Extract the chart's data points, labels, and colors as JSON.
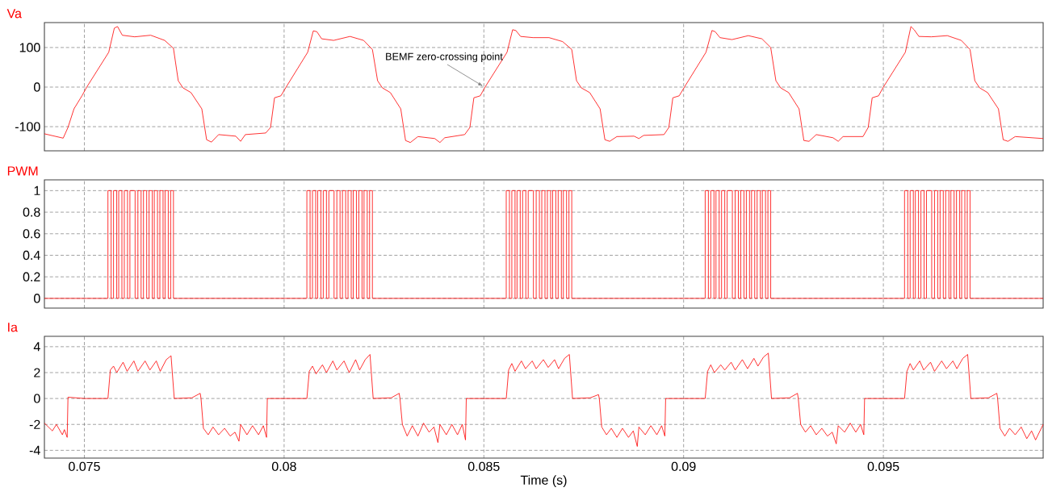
{
  "chart_data": [
    {
      "type": "line",
      "xlim": [
        0.074,
        0.099
      ],
      "xticks": [
        0.075,
        0.08,
        0.085,
        0.09,
        0.095
      ],
      "ylim": [
        -161,
        163
      ],
      "yticks": [
        -100,
        0,
        100
      ],
      "grid": true,
      "tick_labels": "y",
      "annotations": [
        {
          "text": "BEMF zero-crossing point",
          "x": 0.085,
          "y": 0
        }
      ],
      "series": [
        {
          "name": "Va",
          "color": "#ff0000",
          "x": [
            0.074,
            0.07447,
            0.07459,
            0.07474,
            0.07494,
            0.07506,
            0.07561,
            0.07575,
            0.07583,
            0.07595,
            0.07626,
            0.07666,
            0.07701,
            0.07723,
            0.07735,
            0.07747,
            0.07767,
            0.07794,
            0.07806,
            0.07818,
            0.07836,
            0.07879,
            0.07891,
            0.07903,
            0.07954,
            0.07966,
            0.07976,
            0.07992,
            0.08005,
            0.08059,
            0.08073,
            0.08082,
            0.08094,
            0.08124,
            0.08165,
            0.08199,
            0.08221,
            0.08234,
            0.08246,
            0.08266,
            0.08292,
            0.08304,
            0.08316,
            0.08335,
            0.08377,
            0.0839,
            0.08402,
            0.08452,
            0.08465,
            0.08475,
            0.08491,
            0.08503,
            0.08558,
            0.08572,
            0.0858,
            0.08592,
            0.08623,
            0.08663,
            0.08697,
            0.0872,
            0.08732,
            0.08744,
            0.08765,
            0.08791,
            0.08803,
            0.08815,
            0.08833,
            0.08876,
            0.08888,
            0.089,
            0.08951,
            0.08963,
            0.08973,
            0.08989,
            0.09002,
            0.09056,
            0.09071,
            0.09079,
            0.09091,
            0.09121,
            0.09162,
            0.09196,
            0.09218,
            0.09231,
            0.09243,
            0.09263,
            0.09289,
            0.09301,
            0.09314,
            0.09332,
            0.09374,
            0.09387,
            0.09399,
            0.09449,
            0.09462,
            0.09472,
            0.09488,
            0.095,
            0.09555,
            0.09569,
            0.09577,
            0.09589,
            0.0962,
            0.0966,
            0.09695,
            0.09717,
            0.09729,
            0.09741,
            0.09761,
            0.09788,
            0.098,
            0.09812,
            0.0983,
            0.099
          ],
          "values": [
            -118,
            -129,
            -102,
            -55,
            -22,
            0,
            88,
            149,
            153,
            131,
            127,
            131,
            118,
            98,
            16,
            -2,
            -14,
            -55,
            -133,
            -139,
            -120,
            -124,
            -137,
            -120,
            -116,
            -102,
            -27,
            -22,
            0,
            88,
            142,
            140,
            122,
            118,
            128,
            118,
            95,
            16,
            -2,
            -14,
            -55,
            -135,
            -140,
            -125,
            -130,
            -140,
            -128,
            -120,
            -102,
            -27,
            -22,
            0,
            88,
            145,
            143,
            128,
            125,
            125,
            115,
            95,
            16,
            -2,
            -14,
            -55,
            -133,
            -137,
            -125,
            -124,
            -130,
            -122,
            -120,
            -102,
            -27,
            -22,
            0,
            88,
            143,
            140,
            125,
            120,
            130,
            122,
            100,
            16,
            -2,
            -14,
            -55,
            -135,
            -137,
            -120,
            -128,
            -137,
            -125,
            -125,
            -102,
            -27,
            -22,
            0,
            88,
            153,
            145,
            128,
            127,
            130,
            118,
            95,
            16,
            -2,
            -14,
            -55,
            -133,
            -137,
            -125,
            -130
          ]
        }
      ]
    },
    {
      "type": "step",
      "xlim": [
        0.074,
        0.099
      ],
      "xticks": [
        0.075,
        0.08,
        0.085,
        0.09,
        0.095
      ],
      "ylim": [
        -0.09,
        1.1
      ],
      "yticks": [
        0,
        0.2,
        0.4,
        0.6,
        0.8,
        1
      ],
      "grid": true,
      "tick_labels": "y",
      "series": [
        {
          "name": "PWM",
          "color": "#ff0000",
          "x": [
            0.074,
            0.07559,
            0.07567,
            0.07573,
            0.07581,
            0.07586,
            0.07594,
            0.076,
            0.07608,
            0.07614,
            0.07627,
            0.07634,
            0.07642,
            0.07648,
            0.07656,
            0.07662,
            0.0767,
            0.07675,
            0.07683,
            0.07689,
            0.07697,
            0.07702,
            0.0771,
            0.07716,
            0.07723,
            0.08057,
            0.08065,
            0.08071,
            0.08079,
            0.08084,
            0.08092,
            0.08098,
            0.08106,
            0.08112,
            0.08125,
            0.08132,
            0.0814,
            0.08146,
            0.08154,
            0.0816,
            0.08168,
            0.08173,
            0.08181,
            0.08187,
            0.08195,
            0.082,
            0.08208,
            0.08214,
            0.08221,
            0.08556,
            0.08564,
            0.0857,
            0.08578,
            0.08583,
            0.08591,
            0.08597,
            0.08605,
            0.08611,
            0.08624,
            0.08631,
            0.08639,
            0.08645,
            0.08653,
            0.08659,
            0.08667,
            0.08672,
            0.0868,
            0.08686,
            0.08694,
            0.08699,
            0.08707,
            0.08713,
            0.0872,
            0.09054,
            0.09062,
            0.09068,
            0.09076,
            0.09081,
            0.09089,
            0.09095,
            0.09103,
            0.09109,
            0.09122,
            0.09129,
            0.09137,
            0.09143,
            0.09151,
            0.09157,
            0.09165,
            0.0917,
            0.09178,
            0.09184,
            0.09192,
            0.09197,
            0.09205,
            0.09211,
            0.09218,
            0.09553,
            0.09561,
            0.09567,
            0.09575,
            0.0958,
            0.09588,
            0.09594,
            0.09602,
            0.09608,
            0.09621,
            0.09628,
            0.09636,
            0.09642,
            0.0965,
            0.09656,
            0.09664,
            0.09669,
            0.09677,
            0.09683,
            0.09691,
            0.09696,
            0.09704,
            0.0971,
            0.09717,
            0.099
          ],
          "values": [
            0,
            1,
            0,
            1,
            0,
            1,
            0,
            1,
            0,
            1,
            0,
            1,
            0,
            1,
            0,
            1,
            0,
            1,
            0,
            1,
            0,
            1,
            0,
            1,
            0,
            1,
            0,
            1,
            0,
            1,
            0,
            1,
            0,
            1,
            0,
            1,
            0,
            1,
            0,
            1,
            0,
            1,
            0,
            1,
            0,
            1,
            0,
            1,
            0,
            1,
            0,
            1,
            0,
            1,
            0,
            1,
            0,
            1,
            0,
            1,
            0,
            1,
            0,
            1,
            0,
            1,
            0,
            1,
            0,
            1,
            0,
            1,
            0,
            1,
            0,
            1,
            0,
            1,
            0,
            1,
            0,
            1,
            0,
            1,
            0,
            1,
            0,
            1,
            0,
            1,
            0,
            1,
            0,
            1,
            0,
            1,
            0,
            1,
            0,
            1,
            0,
            1,
            0,
            1,
            0,
            1,
            0,
            1,
            0,
            1,
            0,
            1,
            0,
            1,
            0,
            1,
            0,
            1,
            0,
            1,
            0,
            0
          ]
        }
      ]
    },
    {
      "type": "line",
      "xlim": [
        0.074,
        0.099
      ],
      "xticks": [
        0.075,
        0.08,
        0.085,
        0.09,
        0.095
      ],
      "ylim": [
        -4.6,
        4.8
      ],
      "yticks": [
        -4,
        -2,
        0,
        2,
        4
      ],
      "grid": true,
      "xlabel": "Time (s)",
      "series": [
        {
          "name": "Ia",
          "color": "#ff0000",
          "x": [
            0.074,
            0.0742,
            0.0743,
            0.07445,
            0.0745,
            0.07457,
            0.07459,
            0.075,
            0.07559,
            0.07565,
            0.07573,
            0.07581,
            0.07597,
            0.07607,
            0.07624,
            0.07634,
            0.07652,
            0.07664,
            0.0768,
            0.0769,
            0.07705,
            0.07717,
            0.07725,
            0.07769,
            0.0779,
            0.07792,
            0.07798,
            0.0781,
            0.07822,
            0.07836,
            0.07851,
            0.07865,
            0.07877,
            0.07887,
            0.07891,
            0.07907,
            0.07921,
            0.07936,
            0.07948,
            0.07956,
            0.07958,
            0.08057,
            0.08063,
            0.08071,
            0.0808,
            0.08096,
            0.08106,
            0.08122,
            0.08132,
            0.0815,
            0.08163,
            0.08179,
            0.08189,
            0.08203,
            0.08215,
            0.08223,
            0.08268,
            0.08288,
            0.0829,
            0.08296,
            0.08308,
            0.08321,
            0.08335,
            0.08349,
            0.08363,
            0.08375,
            0.08385,
            0.0839,
            0.08406,
            0.0842,
            0.08434,
            0.08446,
            0.08454,
            0.08456,
            0.08556,
            0.08562,
            0.0857,
            0.08578,
            0.08594,
            0.08604,
            0.08621,
            0.08631,
            0.08649,
            0.08661,
            0.08677,
            0.08687,
            0.08702,
            0.08714,
            0.08722,
            0.08766,
            0.08787,
            0.08789,
            0.08795,
            0.08807,
            0.08819,
            0.08833,
            0.08847,
            0.08862,
            0.08874,
            0.08884,
            0.08888,
            0.08904,
            0.08918,
            0.08933,
            0.08945,
            0.08953,
            0.08955,
            0.09054,
            0.0906,
            0.09068,
            0.09077,
            0.09093,
            0.09103,
            0.09119,
            0.09129,
            0.09147,
            0.0916,
            0.09176,
            0.09186,
            0.092,
            0.09212,
            0.0922,
            0.09265,
            0.09285,
            0.09287,
            0.09293,
            0.09305,
            0.09318,
            0.09332,
            0.09346,
            0.0936,
            0.09372,
            0.09382,
            0.09387,
            0.09403,
            0.09417,
            0.09431,
            0.09443,
            0.09451,
            0.09453,
            0.09553,
            0.09559,
            0.09567,
            0.09575,
            0.09591,
            0.09601,
            0.09618,
            0.09628,
            0.09646,
            0.09658,
            0.09674,
            0.09684,
            0.09699,
            0.09711,
            0.09719,
            0.09763,
            0.09784,
            0.09786,
            0.09792,
            0.09804,
            0.09816,
            0.0983,
            0.09845,
            0.09859,
            0.09871,
            0.09881,
            0.099
          ],
          "values": [
            -1.9,
            -2.5,
            -2.0,
            -2.8,
            -2.4,
            -3.0,
            0.1,
            0,
            0,
            2.2,
            2.5,
            2.0,
            2.8,
            2.1,
            2.9,
            2.1,
            2.9,
            2.2,
            2.9,
            2.1,
            3.0,
            3.3,
            0,
            0.05,
            0.4,
            0,
            -2.3,
            -2.8,
            -2.2,
            -2.8,
            -2.3,
            -2.9,
            -2.6,
            -3.3,
            -2.0,
            -2.8,
            -2.1,
            -2.8,
            -2.1,
            -3.0,
            0,
            0,
            2.1,
            2.5,
            1.9,
            2.6,
            2.0,
            2.9,
            2.2,
            2.9,
            2.0,
            3.0,
            2.2,
            3.0,
            3.4,
            0,
            0.05,
            0.4,
            0,
            -2.0,
            -2.9,
            -2.1,
            -2.9,
            -1.9,
            -2.6,
            -2.2,
            -3.4,
            -2.0,
            -2.8,
            -2.0,
            -2.8,
            -2.0,
            -3.2,
            0,
            0,
            2.2,
            2.7,
            2.1,
            2.9,
            2.3,
            2.9,
            2.3,
            3.0,
            2.4,
            3.0,
            2.3,
            3.1,
            3.4,
            0,
            0.05,
            0.3,
            0,
            -2.2,
            -2.8,
            -2.3,
            -3.0,
            -2.3,
            -3.0,
            -2.5,
            -3.7,
            -2.2,
            -2.8,
            -2.1,
            -2.8,
            -2.1,
            -2.9,
            0,
            0,
            2.1,
            2.6,
            2.0,
            2.6,
            2.2,
            2.8,
            2.2,
            3.0,
            2.3,
            3.1,
            2.5,
            3.2,
            3.5,
            0,
            0.05,
            0.4,
            0,
            -2.0,
            -2.6,
            -2.1,
            -2.8,
            -2.3,
            -2.9,
            -2.6,
            -3.5,
            -2.1,
            -2.6,
            -1.9,
            -2.6,
            -2.0,
            -2.8,
            0,
            0,
            2.1,
            2.7,
            2.2,
            2.9,
            2.2,
            2.8,
            2.1,
            2.9,
            2.3,
            2.9,
            2.3,
            3.1,
            3.4,
            0,
            0.05,
            0.4,
            0,
            -2.3,
            -2.9,
            -2.3,
            -2.8,
            -2.2,
            -3.1,
            -2.5,
            -3.2,
            -2.0
          ]
        }
      ]
    }
  ]
}
